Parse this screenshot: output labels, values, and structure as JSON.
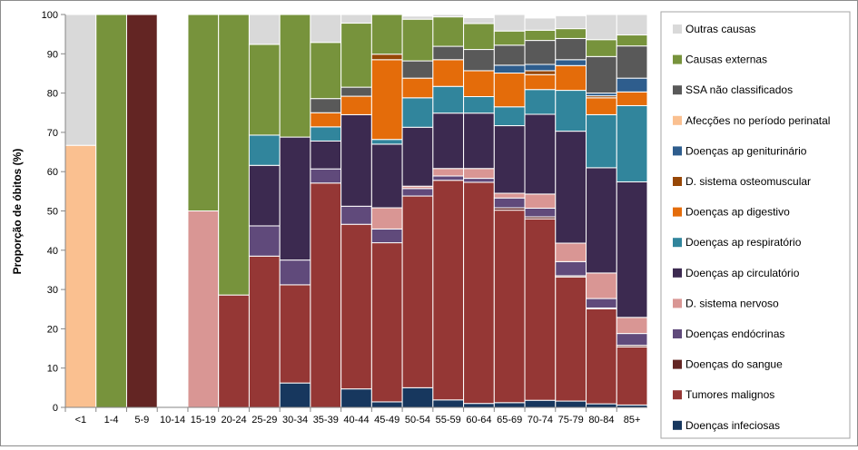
{
  "chart_data": {
    "type": "bar",
    "stacked": true,
    "ylabel": "Proporção de óbitos (%)",
    "ylim": [
      0,
      100
    ],
    "yticks": [
      0,
      10,
      20,
      30,
      40,
      50,
      60,
      70,
      80,
      90,
      100
    ],
    "grid": false,
    "legend_position": "right",
    "categories": [
      "<1",
      "1-4",
      "5-9",
      "10-14",
      "15-19",
      "20-24",
      "25-29",
      "30-34",
      "35-39",
      "40-44",
      "45-49",
      "50-54",
      "55-59",
      "60-64",
      "65-69",
      "70-74",
      "75-79",
      "80-84",
      "85+"
    ],
    "series": [
      {
        "name": "Doenças infeciosas",
        "color": "#17375e",
        "values": [
          0,
          0,
          0,
          0,
          0,
          0,
          0,
          6.2,
          0,
          4.7,
          1.4,
          5,
          1.9,
          1,
          1.2,
          1.8,
          1.6,
          0.9,
          0.6
        ]
      },
      {
        "name": "Tumores malignos",
        "color": "#953735",
        "values": [
          0,
          0,
          0,
          0,
          0,
          28.6,
          38.5,
          25,
          57.1,
          41.9,
          40.5,
          48.8,
          55.9,
          56.3,
          49,
          46.2,
          31.6,
          24.2,
          14.8
        ]
      },
      {
        "name": "Doenças do sangue",
        "color": "#632523",
        "values": [
          0,
          0,
          100,
          0,
          0,
          0,
          0,
          0,
          0,
          0,
          0,
          0,
          0,
          0,
          0.6,
          0.5,
          0.3,
          0.2,
          0.4
        ]
      },
      {
        "name": "Doenças endócrinas",
        "color": "#604a7b",
        "values": [
          0,
          0,
          0,
          0,
          0,
          0,
          7.7,
          6.3,
          3.6,
          4.6,
          3.5,
          1.9,
          1.1,
          1,
          2.5,
          2.2,
          3.6,
          2.4,
          3
        ]
      },
      {
        "name": "D. sistema nervoso",
        "color": "#d99694",
        "values": [
          0,
          0,
          0,
          0,
          50,
          0,
          0,
          0,
          0,
          0,
          5.4,
          0.6,
          1.9,
          2.5,
          1.2,
          3.6,
          4.7,
          6.5,
          4.1
        ]
      },
      {
        "name": "Doenças ap circulatório",
        "color": "#3c2a50",
        "values": [
          0,
          0,
          0,
          0,
          0,
          0,
          15.4,
          31.3,
          7.1,
          23.3,
          16.2,
          15,
          14.1,
          14.1,
          17.2,
          20.3,
          28.5,
          26.8,
          34.5
        ]
      },
      {
        "name": "Doenças ap respiratório",
        "color": "#31859c",
        "values": [
          0,
          0,
          0,
          0,
          0,
          0,
          7.7,
          0,
          3.6,
          0,
          1.2,
          7.5,
          6.8,
          4.2,
          4.8,
          6.3,
          10.4,
          13.5,
          19.4
        ]
      },
      {
        "name": "Doenças ap digestivo",
        "color": "#e46c0a",
        "values": [
          0,
          0,
          0,
          0,
          0,
          0,
          0,
          0,
          3.6,
          4.7,
          20.3,
          5,
          6.8,
          6.6,
          8.6,
          3.8,
          6.3,
          4.3,
          3.5
        ]
      },
      {
        "name": "D. sistema osteomuscular",
        "color": "#974706",
        "values": [
          0,
          0,
          0,
          0,
          0,
          0,
          0,
          0,
          0,
          0,
          1.4,
          0,
          0,
          0,
          0,
          1,
          0,
          0.5,
          0
        ]
      },
      {
        "name": "Doenças ap geniturinário",
        "color": "#2e5d8d",
        "values": [
          0,
          0,
          0,
          0,
          0,
          0,
          0,
          0,
          0,
          0,
          0,
          0,
          0,
          0,
          2,
          1.6,
          1.5,
          0.7,
          3.5
        ]
      },
      {
        "name": "Afecções no período perinatal",
        "color": "#fac090",
        "values": [
          66.7,
          0,
          0,
          0,
          0,
          0,
          0,
          0,
          0,
          0,
          0,
          0,
          0,
          0,
          0,
          0,
          0,
          0,
          0
        ]
      },
      {
        "name": "SSA não classificados",
        "color": "#595959",
        "values": [
          0,
          0,
          0,
          0,
          0,
          0,
          0,
          0,
          3.6,
          2.3,
          0,
          4.4,
          3.4,
          5.4,
          5.1,
          6.1,
          5.4,
          9.3,
          8.2
        ]
      },
      {
        "name": "Causas externas",
        "color": "#77933c",
        "values": [
          0,
          100,
          0,
          0,
          50,
          71.4,
          23.1,
          31.2,
          14.3,
          16.3,
          10.1,
          10.6,
          7.5,
          6.6,
          3.6,
          2.6,
          2.5,
          4.3,
          2.8
        ]
      },
      {
        "name": "Outras causas",
        "color": "#d9d9d9",
        "values": [
          33.3,
          0,
          0,
          0,
          0,
          0,
          7.6,
          0,
          7.1,
          2.2,
          0,
          0.8,
          0.6,
          1.5,
          4.2,
          3.1,
          3.3,
          6.4,
          5.2
        ]
      }
    ]
  }
}
